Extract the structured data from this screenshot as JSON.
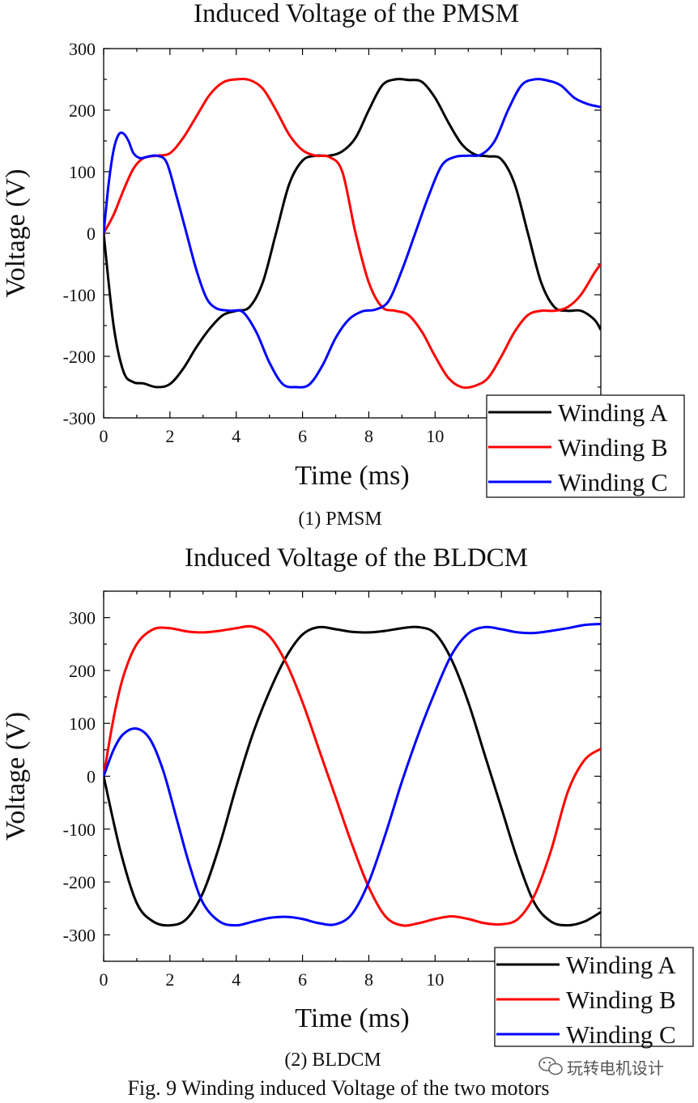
{
  "caption": "Fig. 9 Winding induced Voltage of the two motors",
  "watermark": "玩转电机设计",
  "colors": {
    "winding_a": "#000000",
    "winding_b": "#ff0000",
    "winding_c": "#0000ff"
  },
  "chart_data": [
    {
      "type": "line",
      "title": "Induced Voltage of the PMSM",
      "subtitle": "(1)    PMSM",
      "xlabel": "Time (ms)",
      "ylabel": "Voltage (V)",
      "xlim": [
        0,
        15
      ],
      "ylim": [
        -300,
        300
      ],
      "xticks": [
        0,
        2,
        4,
        6,
        8,
        10
      ],
      "yticks": [
        -300,
        -200,
        -100,
        0,
        100,
        200,
        300
      ],
      "legend_position": "bottom-right",
      "series": [
        {
          "name": "Winding A",
          "color": "#000000",
          "x": [
            0,
            0.3,
            0.6,
            0.9,
            1.2,
            1.6,
            2.0,
            2.4,
            2.8,
            3.2,
            3.6,
            4.0,
            4.4,
            4.8,
            5.2,
            5.6,
            6.0,
            6.4,
            6.8,
            7.2,
            7.6,
            8.0,
            8.4,
            8.8,
            9.2,
            9.6,
            10.0,
            10.4,
            10.8,
            11.2,
            11.6,
            12.0,
            12.4,
            12.8,
            13.2,
            13.6,
            14.0,
            14.4,
            14.8,
            15.0
          ],
          "y": [
            0,
            -150,
            -225,
            -242,
            -244,
            -250,
            -245,
            -220,
            -185,
            -155,
            -133,
            -126,
            -120,
            -80,
            0,
            80,
            118,
            126,
            126,
            133,
            155,
            200,
            240,
            250,
            249,
            246,
            220,
            180,
            145,
            128,
            125,
            120,
            80,
            0,
            -80,
            -120,
            -126,
            -126,
            -140,
            -157
          ]
        },
        {
          "name": "Winding B",
          "color": "#ff0000",
          "x": [
            0,
            0.3,
            0.6,
            0.9,
            1.2,
            1.6,
            2.0,
            2.4,
            2.8,
            3.2,
            3.6,
            4.0,
            4.4,
            4.8,
            5.2,
            5.6,
            6.0,
            6.4,
            6.8,
            7.2,
            7.6,
            8.0,
            8.4,
            8.8,
            9.2,
            9.6,
            10.0,
            10.4,
            10.8,
            11.2,
            11.6,
            12.0,
            12.4,
            12.8,
            13.2,
            13.6,
            14.0,
            14.4,
            14.8,
            15.0
          ],
          "y": [
            0,
            30,
            70,
            105,
            122,
            126,
            130,
            155,
            190,
            225,
            245,
            250,
            249,
            235,
            200,
            160,
            135,
            126,
            124,
            100,
            0,
            -80,
            -120,
            -126,
            -133,
            -160,
            -200,
            -235,
            -250,
            -248,
            -235,
            -200,
            -160,
            -133,
            -126,
            -126,
            -120,
            -100,
            -65,
            -50
          ]
        },
        {
          "name": "Winding C",
          "color": "#0000ff",
          "x": [
            0,
            0.15,
            0.3,
            0.45,
            0.6,
            0.75,
            0.9,
            1.1,
            1.3,
            1.6,
            1.9,
            2.2,
            2.5,
            2.8,
            3.1,
            3.4,
            3.8,
            4.2,
            4.6,
            5.0,
            5.4,
            5.8,
            6.2,
            6.6,
            7.0,
            7.4,
            7.8,
            8.2,
            8.6,
            9.0,
            9.4,
            9.8,
            10.2,
            10.6,
            11.0,
            11.4,
            11.8,
            12.2,
            12.6,
            13.0,
            13.4,
            13.8,
            14.2,
            14.6,
            15.0
          ],
          "y": [
            0,
            80,
            135,
            160,
            162,
            150,
            130,
            122,
            124,
            126,
            115,
            60,
            0,
            -60,
            -105,
            -122,
            -126,
            -128,
            -160,
            -210,
            -245,
            -250,
            -246,
            -215,
            -170,
            -140,
            -127,
            -124,
            -110,
            -60,
            0,
            60,
            110,
            124,
            126,
            128,
            150,
            200,
            240,
            250,
            248,
            240,
            220,
            210,
            205
          ]
        }
      ]
    },
    {
      "type": "line",
      "title": "Induced Voltage of the BLDCM",
      "subtitle": "(2)    BLDCM",
      "xlabel": "Time (ms)",
      "ylabel": "Voltage (V)",
      "xlim": [
        0,
        15
      ],
      "ylim": [
        -350,
        350
      ],
      "xticks": [
        0,
        2,
        4,
        6,
        8,
        10
      ],
      "yticks": [
        -300,
        -200,
        -100,
        0,
        100,
        200,
        300
      ],
      "legend_position": "bottom-right",
      "series": [
        {
          "name": "Winding A",
          "color": "#000000",
          "x": [
            0,
            0.5,
            1.0,
            1.5,
            2.0,
            2.5,
            3.0,
            3.5,
            4.0,
            4.5,
            5.0,
            5.5,
            6.0,
            6.5,
            7.0,
            7.5,
            8.0,
            8.5,
            9.0,
            9.5,
            10.0,
            10.5,
            11.0,
            11.5,
            12.0,
            12.5,
            13.0,
            13.5,
            14.0,
            14.5,
            15.0
          ],
          "y": [
            0,
            -140,
            -240,
            -275,
            -282,
            -270,
            -220,
            -130,
            -20,
            80,
            160,
            225,
            268,
            282,
            278,
            273,
            272,
            275,
            280,
            282,
            270,
            220,
            140,
            40,
            -60,
            -160,
            -240,
            -275,
            -282,
            -275,
            -257
          ]
        },
        {
          "name": "Winding B",
          "color": "#ff0000",
          "x": [
            0,
            0.3,
            0.6,
            1.0,
            1.5,
            2.0,
            2.5,
            3.0,
            3.5,
            4.0,
            4.5,
            5.0,
            5.5,
            6.0,
            6.5,
            7.0,
            7.5,
            8.0,
            8.5,
            9.0,
            9.5,
            10.0,
            10.5,
            11.0,
            11.5,
            12.0,
            12.5,
            13.0,
            13.5,
            14.0,
            14.5,
            15.0
          ],
          "y": [
            0,
            110,
            190,
            250,
            278,
            280,
            274,
            272,
            275,
            280,
            283,
            265,
            215,
            140,
            50,
            -40,
            -130,
            -210,
            -265,
            -282,
            -278,
            -270,
            -265,
            -270,
            -278,
            -280,
            -270,
            -225,
            -140,
            -30,
            30,
            52
          ]
        },
        {
          "name": "Winding C",
          "color": "#0000ff",
          "x": [
            0,
            0.3,
            0.6,
            1.0,
            1.4,
            1.8,
            2.2,
            2.6,
            3.0,
            3.5,
            4.0,
            4.5,
            5.0,
            5.5,
            6.0,
            6.5,
            7.0,
            7.5,
            8.0,
            8.5,
            9.0,
            9.5,
            10.0,
            10.5,
            11.0,
            11.5,
            12.0,
            12.5,
            13.0,
            13.5,
            14.0,
            14.5,
            15.0
          ],
          "y": [
            0,
            50,
            80,
            90,
            70,
            10,
            -80,
            -170,
            -240,
            -275,
            -282,
            -275,
            -268,
            -266,
            -270,
            -278,
            -280,
            -260,
            -200,
            -110,
            -10,
            80,
            160,
            230,
            270,
            282,
            278,
            272,
            271,
            275,
            280,
            286,
            288
          ]
        }
      ]
    }
  ]
}
